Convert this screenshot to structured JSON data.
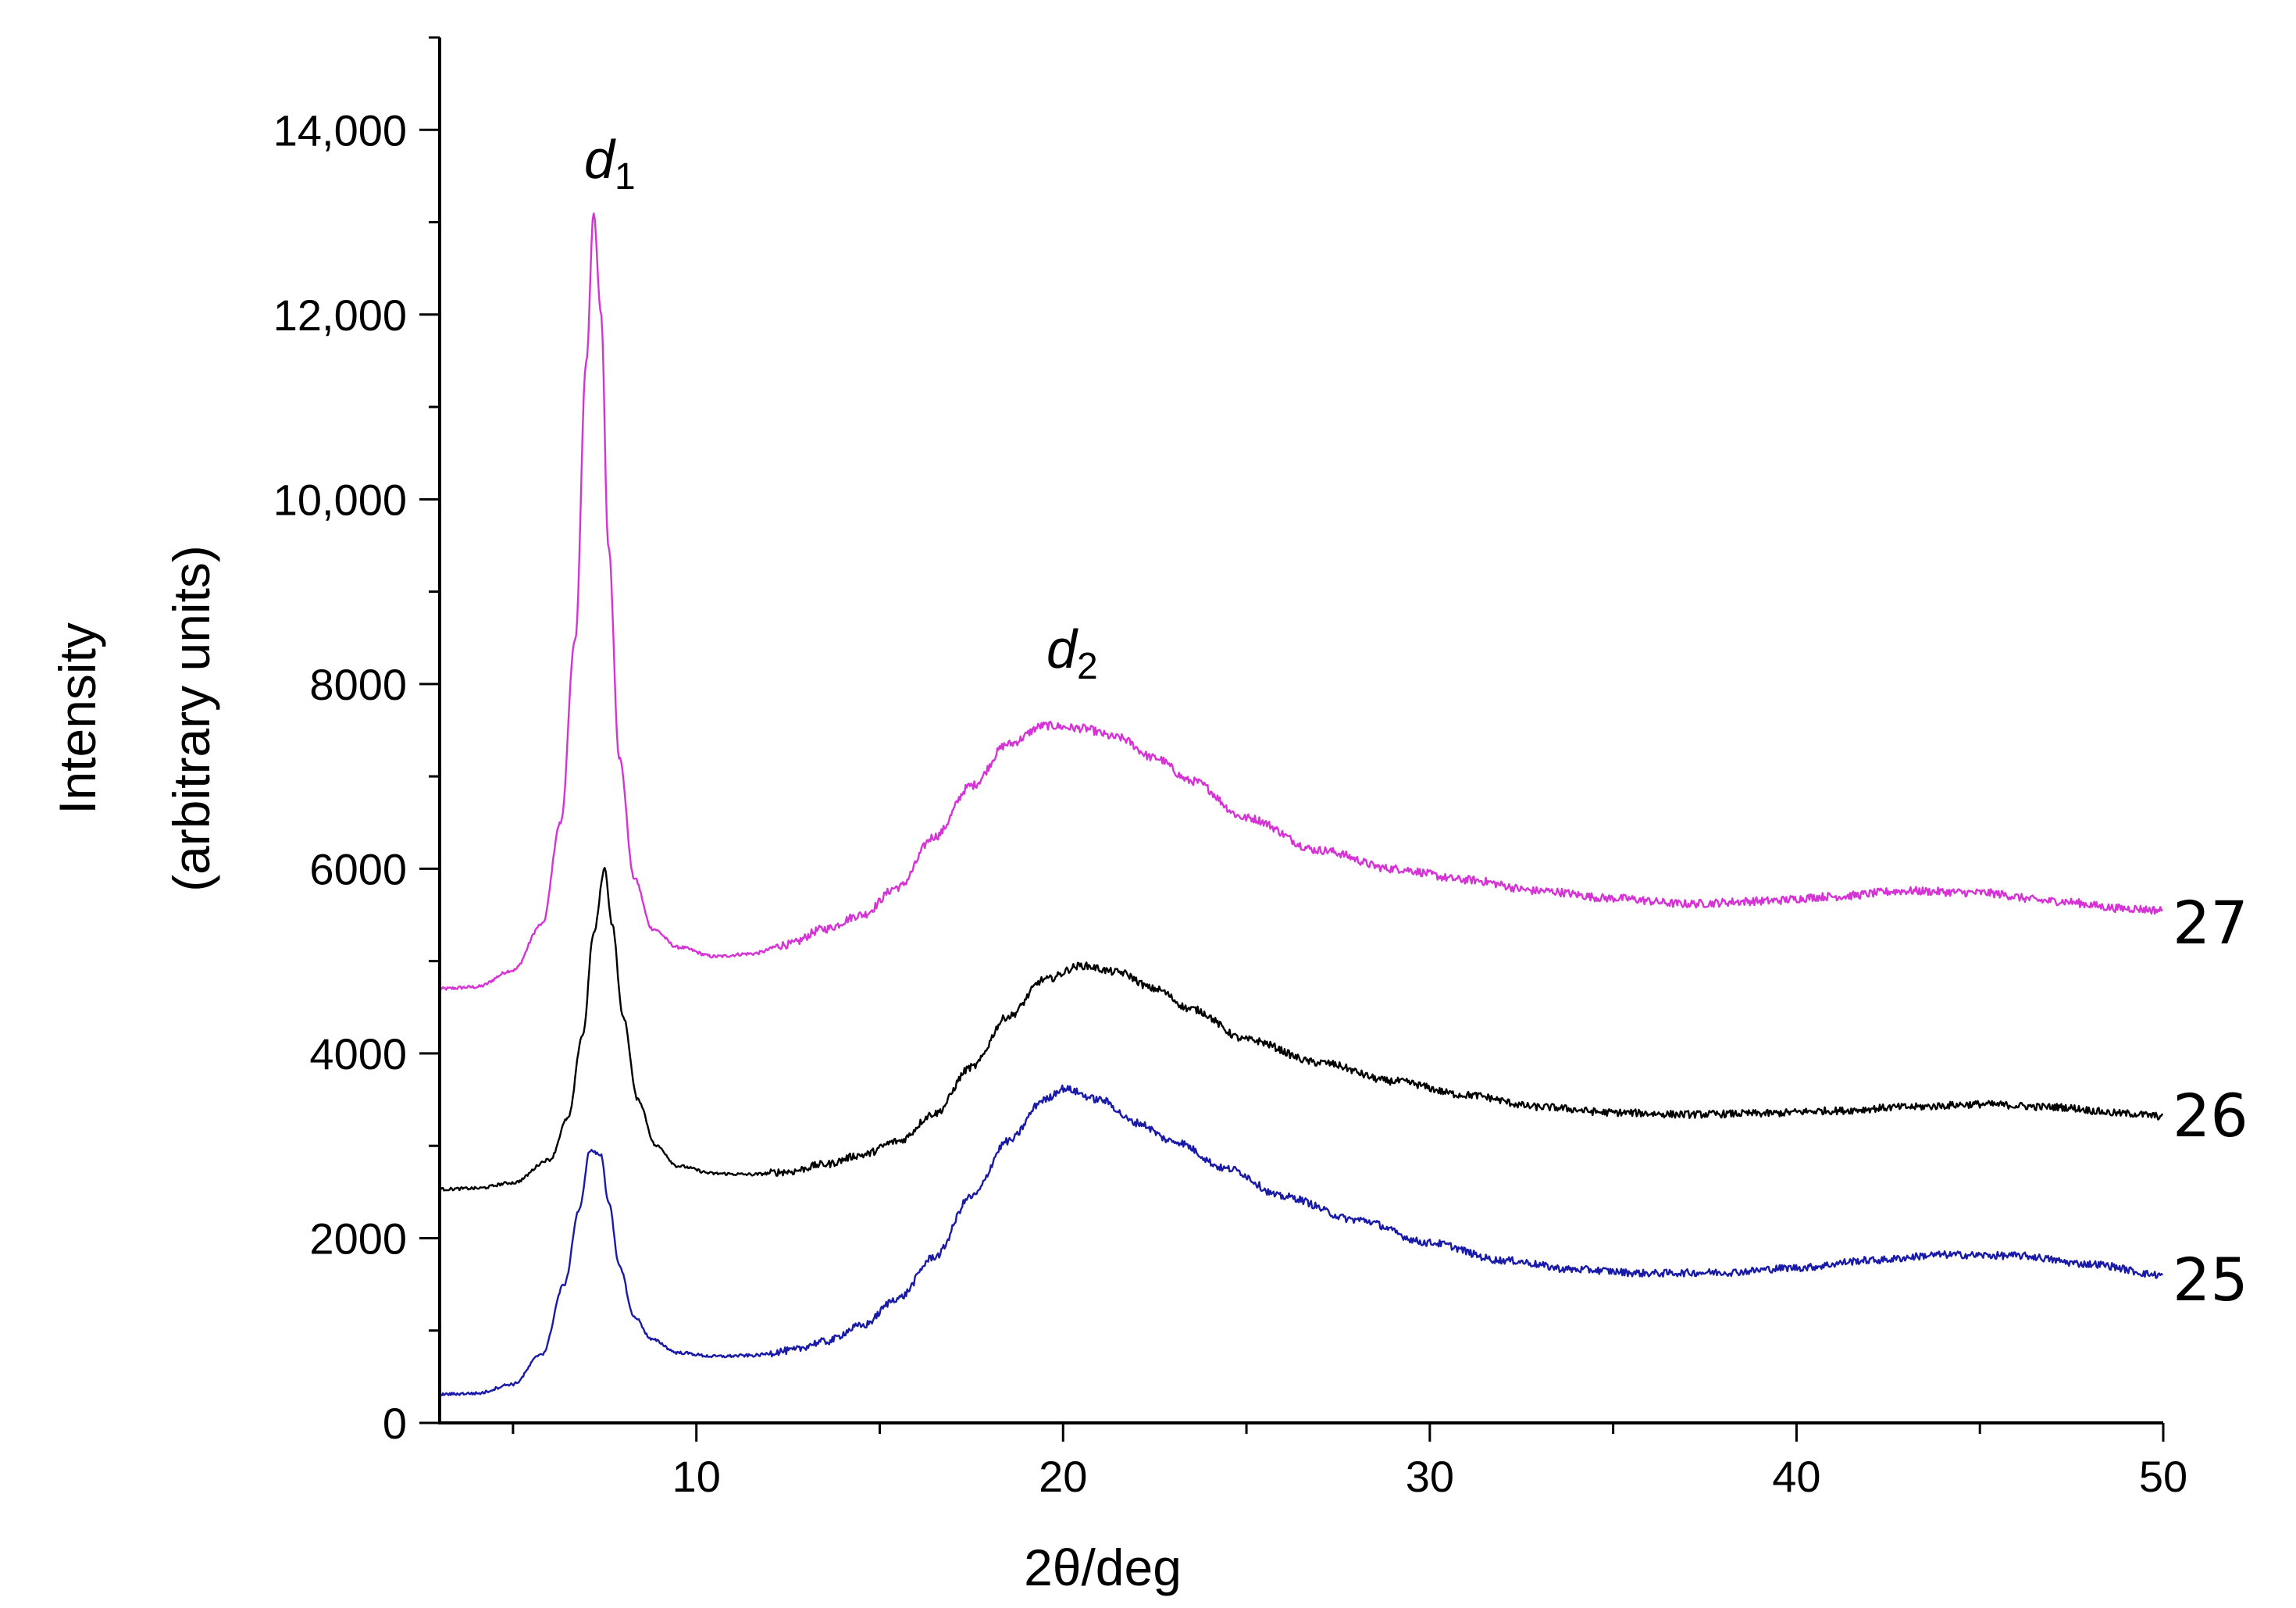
{
  "chart_data": {
    "type": "line",
    "title": "",
    "xlabel": "2θ/deg",
    "ylabel_line1": "Intensity",
    "ylabel_line2": "(arbitrary units)",
    "xlim": [
      3,
      50
    ],
    "ylim": [
      0,
      15000
    ],
    "xticks": [
      10,
      20,
      30,
      40,
      50
    ],
    "xtick_labels": [
      "10",
      "20",
      "30",
      "40",
      "50"
    ],
    "yticks": [
      0,
      2000,
      4000,
      6000,
      8000,
      10000,
      12000,
      14000
    ],
    "ytick_labels": [
      "0",
      "2000",
      "4000",
      "6000",
      "8000",
      "10,000",
      "12,000",
      "14,000"
    ],
    "grid": false,
    "annotations": [
      {
        "id": "d1",
        "letter": "d",
        "subscript": "1",
        "x": 7.7,
        "y": 13900
      },
      {
        "id": "d2",
        "letter": "d",
        "subscript": "2",
        "x": 21.0,
        "y": 8000
      }
    ],
    "series": [
      {
        "name": "27",
        "color": "#d633d6",
        "noise": 45,
        "x": [
          3,
          4,
          5,
          5.8,
          6.3,
          6.7,
          7.0,
          7.2,
          7.4,
          7.6,
          7.9,
          8.3,
          8.8,
          9.5,
          10.5,
          11.5,
          12.5,
          13.5,
          14.5,
          15.5,
          16.5,
          17.5,
          18.5,
          19.5,
          20.5,
          21.5,
          22.5,
          23.5,
          25,
          27,
          29,
          31,
          33,
          35,
          37,
          39,
          41,
          43,
          45,
          47,
          49,
          50
        ],
        "y": [
          4700,
          4720,
          4900,
          5400,
          6500,
          8500,
          11500,
          13100,
          12000,
          9500,
          7200,
          5900,
          5350,
          5150,
          5050,
          5080,
          5180,
          5350,
          5500,
          5800,
          6350,
          6900,
          7350,
          7550,
          7520,
          7420,
          7200,
          6950,
          6550,
          6200,
          6000,
          5880,
          5760,
          5680,
          5620,
          5650,
          5700,
          5760,
          5740,
          5650,
          5570,
          5550
        ]
      },
      {
        "name": "26",
        "color": "#000000",
        "noise": 40,
        "x": [
          3,
          4,
          5,
          6.0,
          6.5,
          6.9,
          7.2,
          7.5,
          7.7,
          8.0,
          8.4,
          8.9,
          9.5,
          10.5,
          11.5,
          12.5,
          13.5,
          14.5,
          15.5,
          16.5,
          17.5,
          18.5,
          19.5,
          20.5,
          21.5,
          22.5,
          23.5,
          25,
          27,
          29,
          31,
          33,
          35,
          37,
          39,
          41,
          43,
          45,
          47,
          49,
          50
        ],
        "y": [
          2530,
          2540,
          2600,
          2850,
          3300,
          4200,
          5300,
          6000,
          5400,
          4400,
          3500,
          3000,
          2780,
          2700,
          2690,
          2720,
          2800,
          2900,
          3050,
          3350,
          3850,
          4400,
          4800,
          4950,
          4880,
          4700,
          4480,
          4150,
          3900,
          3700,
          3550,
          3420,
          3360,
          3340,
          3350,
          3380,
          3420,
          3450,
          3420,
          3350,
          3320
        ]
      },
      {
        "name": "25",
        "color": "#1a1aa8",
        "noise": 40,
        "x": [
          3,
          4,
          5,
          5.8,
          6.4,
          6.8,
          7.1,
          7.4,
          7.6,
          7.9,
          8.3,
          8.8,
          9.5,
          10.5,
          11.5,
          12.5,
          13.5,
          14.5,
          15.5,
          16.5,
          17.5,
          18.5,
          19.5,
          20.0,
          21.0,
          22.0,
          23.0,
          24.5,
          26,
          28,
          30,
          32,
          34,
          36,
          38,
          40,
          42,
          44,
          46,
          48,
          50
        ],
        "y": [
          310,
          320,
          420,
          750,
          1500,
          2300,
          2950,
          2900,
          2400,
          1700,
          1150,
          900,
          760,
          720,
          730,
          780,
          880,
          1050,
          1350,
          1800,
          2450,
          3050,
          3500,
          3620,
          3500,
          3250,
          3050,
          2750,
          2450,
          2200,
          1950,
          1760,
          1660,
          1620,
          1630,
          1680,
          1760,
          1820,
          1810,
          1720,
          1600
        ]
      }
    ]
  }
}
